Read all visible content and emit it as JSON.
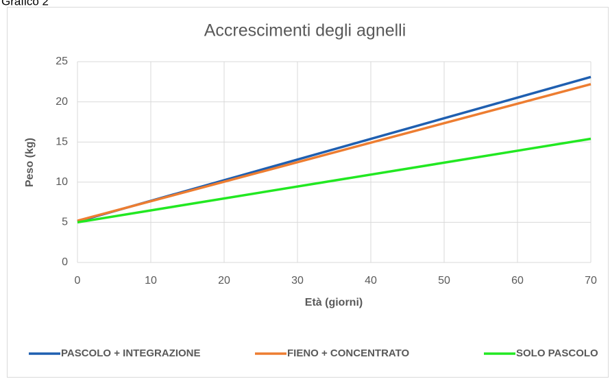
{
  "caption": "Grafico 2",
  "chart_data": {
    "type": "line",
    "title": "Accrescimenti degli agnelli",
    "xlabel": "Età (giorni)",
    "ylabel": "Peso (kg)",
    "x": [
      0,
      70
    ],
    "series": [
      {
        "name": "PASCOLO + INTEGRAZIONE",
        "color": "#1f5fb0",
        "values": [
          5.1,
          23.1
        ]
      },
      {
        "name": "FIENO + CONCENTRATO",
        "color": "#ed7d31",
        "values": [
          5.2,
          22.2
        ]
      },
      {
        "name": "SOLO PASCOLO",
        "color": "#22e822",
        "values": [
          5.0,
          15.4
        ]
      }
    ],
    "xlim": [
      0,
      70
    ],
    "xticks": [
      0,
      10,
      20,
      30,
      40,
      50,
      60,
      70
    ],
    "ylim": [
      0,
      25
    ],
    "yticks": [
      0,
      5,
      10,
      15,
      20,
      25
    ],
    "grid": true,
    "legend": "bottom"
  }
}
